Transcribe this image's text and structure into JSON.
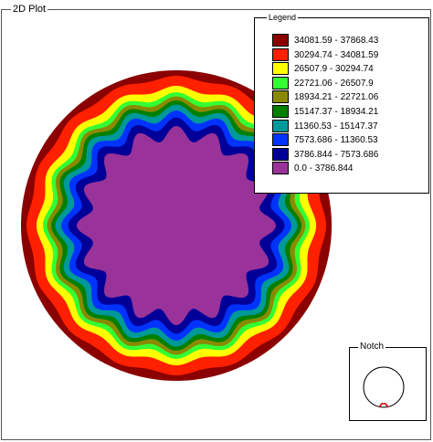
{
  "window": {
    "title": "2D Plot"
  },
  "legend": {
    "title": "Legend"
  },
  "notch": {
    "title": "Notch"
  },
  "chart_data": {
    "type": "heatmap",
    "title": "",
    "xlabel": "",
    "ylabel": "",
    "grid": false,
    "legend_placement": "top-right",
    "colorbar_ranges": [
      {
        "label": "34081.59 - 37868.43",
        "min": 34081.59,
        "max": 37868.43,
        "color": "#8b0000"
      },
      {
        "label": "30294.74 - 34081.59",
        "min": 30294.74,
        "max": 34081.59,
        "color": "#ff2000"
      },
      {
        "label": "26507.9 - 30294.74",
        "min": 26507.9,
        "max": 30294.74,
        "color": "#ffff00"
      },
      {
        "label": "22721.06 - 26507.9",
        "min": 22721.06,
        "max": 26507.9,
        "color": "#33ff33"
      },
      {
        "label": "18934.21 - 22721.06",
        "min": 18934.21,
        "max": 22721.06,
        "color": "#8a8a00"
      },
      {
        "label": "15147.37 - 18934.21",
        "min": 15147.37,
        "max": 18934.21,
        "color": "#008000"
      },
      {
        "label": "11360.53 - 15147.37",
        "min": 11360.53,
        "max": 15147.37,
        "color": "#009999"
      },
      {
        "label": "7573.686 - 11360.53",
        "min": 7573.686,
        "max": 11360.53,
        "color": "#0033ff"
      },
      {
        "label": "3786.844 - 7573.686",
        "min": 3786.844,
        "max": 7573.686,
        "color": "#000099"
      },
      {
        "label": "0.0 - 3786.844",
        "min": 0.0,
        "max": 3786.844,
        "color": "#993399"
      }
    ],
    "radial_profile": {
      "lobes": 16,
      "band_order_outer_to_inner": [
        "34081.59 - 37868.43",
        "30294.74 - 34081.59",
        "26507.9 - 30294.74",
        "22721.06 - 26507.9",
        "18934.21 - 22721.06",
        "15147.37 - 18934.21",
        "11360.53 - 15147.37",
        "7573.686 - 11360.53",
        "3786.844 - 7573.686",
        "0.0 - 3786.844"
      ]
    }
  }
}
